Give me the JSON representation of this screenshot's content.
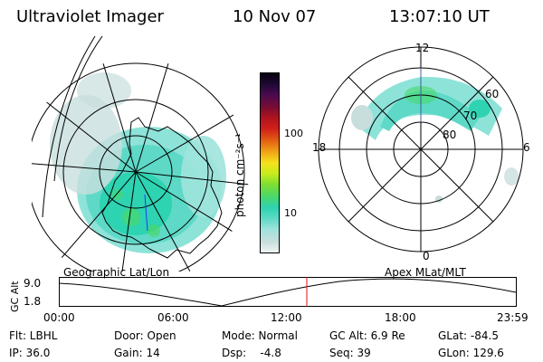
{
  "header": {
    "instrument": "Ultraviolet Imager",
    "date": "10 Nov 07",
    "time": "13:07:10 UT"
  },
  "colorbar": {
    "label": "photon cm⁻²s⁻¹",
    "ticks": [
      "100",
      "10"
    ],
    "colors": [
      "#eef4f4",
      "#c8dedd",
      "#9ee3dc",
      "#5ed9c7",
      "#2ed3b2",
      "#48d86b",
      "#7ede31",
      "#c8ec1c",
      "#f4e21c",
      "#f0a518",
      "#e05a12",
      "#d21f1a",
      "#b0141e",
      "#7a0c34",
      "#4a0a4e",
      "#1e0833",
      "#0a0010"
    ]
  },
  "left_panel": {
    "caption": "Geographic Lat/Lon"
  },
  "right_panel": {
    "caption": "Apex  MLat/MLT",
    "mlt_labels": {
      "top": "12",
      "right": "6",
      "left": "18",
      "bottom": "0"
    },
    "lat_labels": [
      "60",
      "70",
      "80"
    ]
  },
  "altitude_plot": {
    "ylabel": "GC Alt",
    "yticks": [
      "9.0",
      "1.8"
    ],
    "xticks": [
      "00:00",
      "06:00",
      "12:00",
      "18:00",
      "23:59"
    ],
    "current_marker": "13:07"
  },
  "info": {
    "filter": "Flt: LBHL",
    "ip": "IP: 36.0",
    "door": "Door: Open",
    "gain": "Gain: 14",
    "mode": "Mode: Normal",
    "dsp": "Dsp:    -4.8",
    "gc_alt": "GC Alt: 6.9 Re",
    "seq": "Seq: 39",
    "glat": "GLat: -84.5",
    "glon": "GLon: 129.6"
  }
}
